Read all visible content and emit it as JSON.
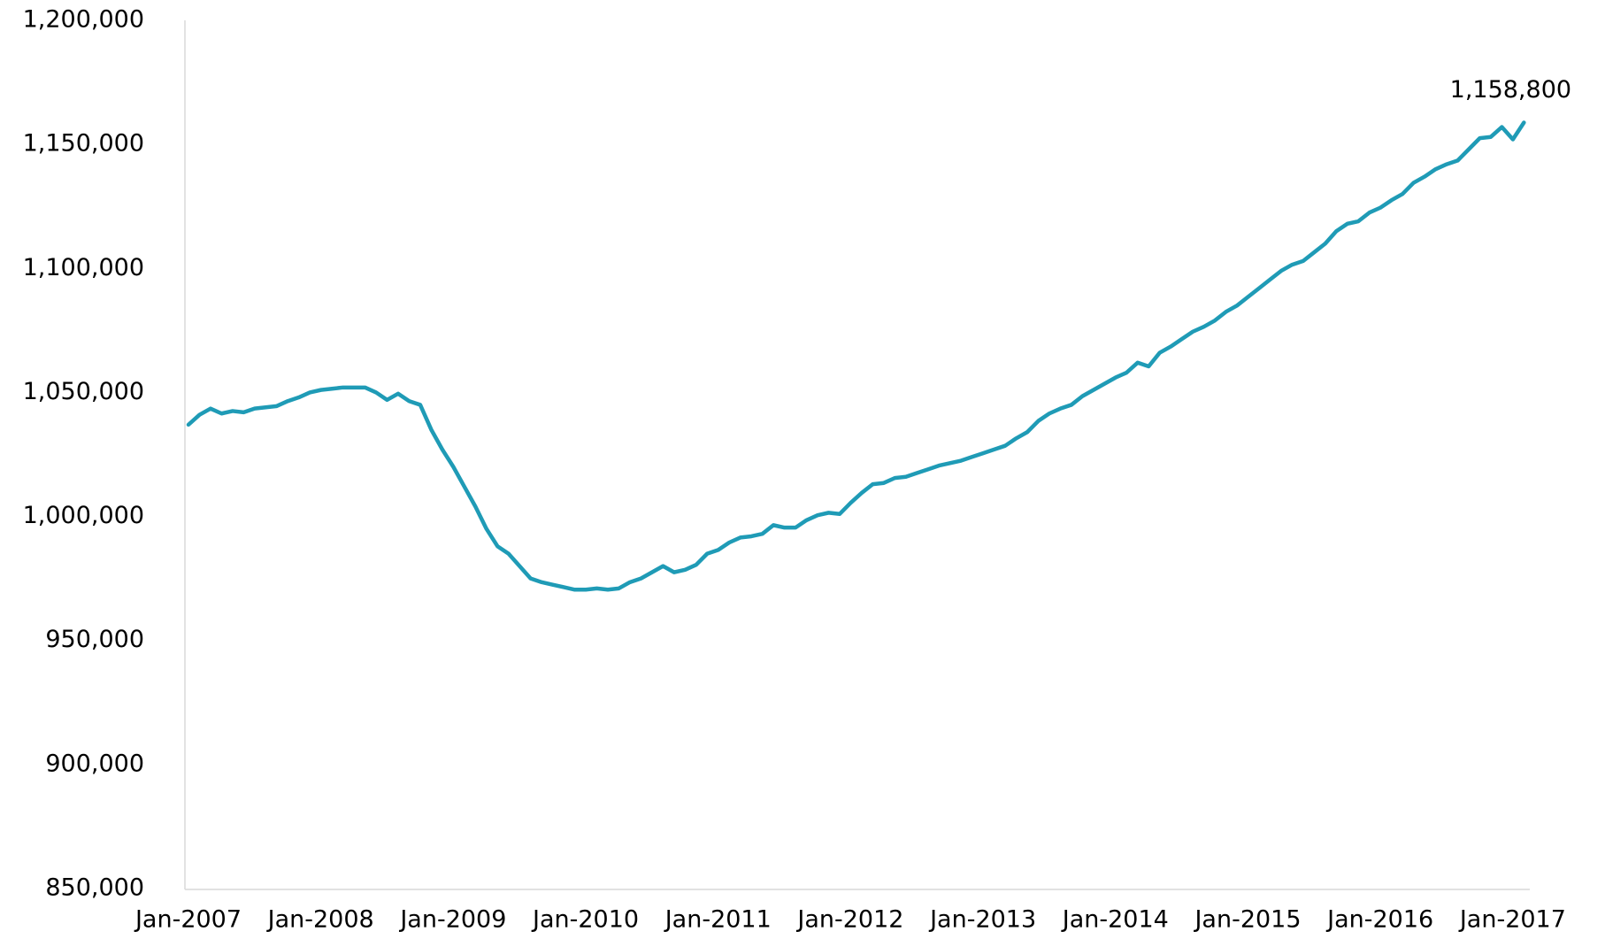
{
  "chart_data": {
    "type": "line",
    "categories": [
      "Jan-2007",
      null,
      null,
      null,
      null,
      null,
      null,
      null,
      null,
      null,
      null,
      null,
      "Jan-2008",
      null,
      null,
      null,
      null,
      null,
      null,
      null,
      null,
      null,
      null,
      null,
      "Jan-2009",
      null,
      null,
      null,
      null,
      null,
      null,
      null,
      null,
      null,
      null,
      null,
      "Jan-2010",
      null,
      null,
      null,
      null,
      null,
      null,
      null,
      null,
      null,
      null,
      null,
      "Jan-2011",
      null,
      null,
      null,
      null,
      null,
      null,
      null,
      null,
      null,
      null,
      null,
      "Jan-2012",
      null,
      null,
      null,
      null,
      null,
      null,
      null,
      null,
      null,
      null,
      null,
      "Jan-2013",
      null,
      null,
      null,
      null,
      null,
      null,
      null,
      null,
      null,
      null,
      null,
      "Jan-2014",
      null,
      null,
      null,
      null,
      null,
      null,
      null,
      null,
      null,
      null,
      null,
      "Jan-2015",
      null,
      null,
      null,
      null,
      null,
      null,
      null,
      null,
      null,
      null,
      null,
      "Jan-2016",
      null,
      null,
      null,
      null,
      null,
      null,
      null,
      null,
      null,
      null,
      null,
      "Jan-2017",
      null
    ],
    "values": [
      1037000,
      1041000,
      1043500,
      1041500,
      1042500,
      1042000,
      1043500,
      1044000,
      1044500,
      1046500,
      1048000,
      1050000,
      1051000,
      1051500,
      1052000,
      1052000,
      1052000,
      1050000,
      1047000,
      1049500,
      1046500,
      1045000,
      1035000,
      1027000,
      1020000,
      1012000,
      1004000,
      995000,
      988000,
      985000,
      980000,
      975000,
      973500,
      972500,
      971500,
      970500,
      970500,
      971000,
      970500,
      971000,
      973500,
      975000,
      977500,
      980000,
      977500,
      978500,
      980500,
      985000,
      986500,
      989500,
      991500,
      992000,
      993000,
      996500,
      995500,
      995500,
      998500,
      1000500,
      1001500,
      1001000,
      1005500,
      1009500,
      1013000,
      1013500,
      1015500,
      1016000,
      1017500,
      1019000,
      1020500,
      1021500,
      1022500,
      1024000,
      1025500,
      1027000,
      1028500,
      1031500,
      1034000,
      1038500,
      1041500,
      1043500,
      1045000,
      1048500,
      1051000,
      1053500,
      1056000,
      1058000,
      1062000,
      1060500,
      1066000,
      1068500,
      1071500,
      1074500,
      1076500,
      1079000,
      1082500,
      1085000,
      1088500,
      1092000,
      1095500,
      1099000,
      1101500,
      1103000,
      1106500,
      1110000,
      1115000,
      1118000,
      1119000,
      1122500,
      1124500,
      1127500,
      1130000,
      1134500,
      1137000,
      1140000,
      1142000,
      1143500,
      1148000,
      1152500,
      1153000,
      1157000,
      1152000,
      1158800
    ],
    "value_labels": [
      null,
      null,
      null,
      null,
      null,
      null,
      null,
      null,
      null,
      null,
      null,
      null,
      null,
      null,
      null,
      null,
      null,
      null,
      null,
      null,
      null,
      null,
      null,
      null,
      null,
      null,
      null,
      null,
      null,
      null,
      null,
      null,
      null,
      null,
      null,
      null,
      null,
      null,
      null,
      null,
      null,
      null,
      null,
      null,
      null,
      null,
      null,
      null,
      null,
      null,
      null,
      null,
      null,
      null,
      null,
      null,
      null,
      null,
      null,
      null,
      null,
      null,
      null,
      null,
      null,
      null,
      null,
      null,
      null,
      null,
      null,
      null,
      null,
      null,
      null,
      null,
      null,
      null,
      null,
      null,
      null,
      null,
      null,
      null,
      null,
      null,
      null,
      null,
      null,
      null,
      null,
      null,
      null,
      null,
      null,
      null,
      null,
      null,
      null,
      null,
      null,
      null,
      null,
      null,
      null,
      null,
      null,
      null,
      null,
      null,
      null,
      null,
      null,
      null,
      null,
      null,
      null,
      null,
      null,
      null,
      null,
      "1,158,800"
    ],
    "color": "#1f9bb6",
    "ylim": [
      850000,
      1200000
    ],
    "yticks": [
      {
        "value": 850000,
        "label": "850,000"
      },
      {
        "value": 900000,
        "label": "900,000"
      },
      {
        "value": 950000,
        "label": "950,000"
      },
      {
        "value": 1000000,
        "label": "1,000,000"
      },
      {
        "value": 1050000,
        "label": "1,050,000"
      },
      {
        "value": 1100000,
        "label": "1,100,000"
      },
      {
        "value": 1150000,
        "label": "1,150,000"
      },
      {
        "value": 1200000,
        "label": "1,200,000"
      }
    ],
    "grid": false
  }
}
